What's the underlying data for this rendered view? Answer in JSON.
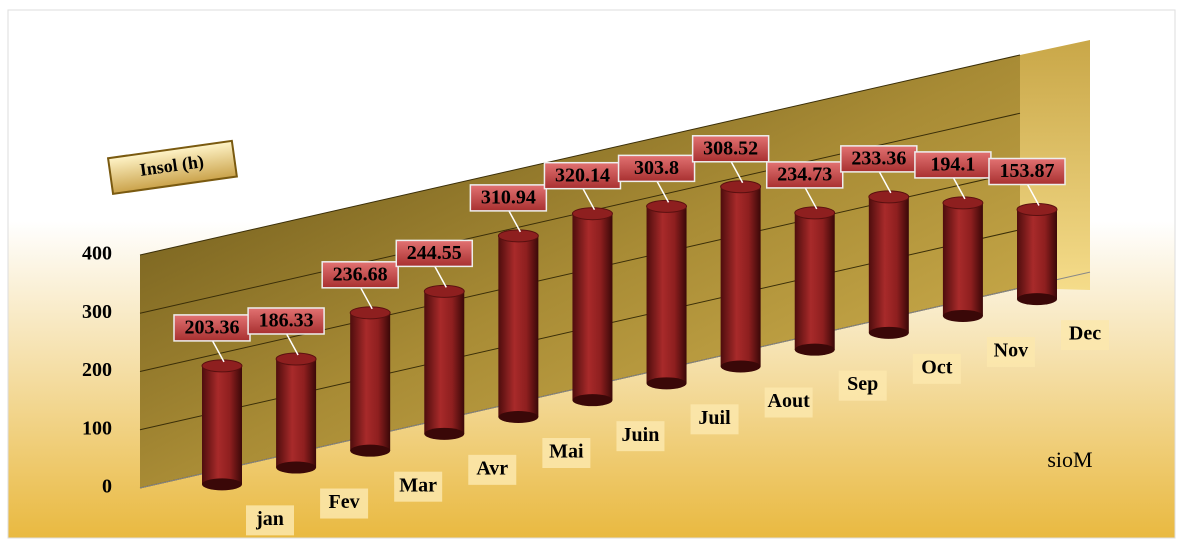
{
  "chart_data": {
    "type": "bar3d",
    "y_axis_label": "Insol (h)",
    "x_axis_label": "sioM",
    "categories": [
      "jan",
      "Fev",
      "Mar",
      "Avr",
      "Mai",
      "Juin",
      "Juil",
      "Aout",
      "Sep",
      "Oct",
      "Nov",
      "Dec"
    ],
    "values": [
      203.36,
      186.33,
      236.68,
      244.55,
      310.94,
      320.14,
      303.8,
      308.52,
      234.73,
      233.36,
      194.1,
      153.87
    ],
    "color": "#8e1f1f",
    "ylim": [
      0,
      400
    ],
    "yticks": [
      0,
      100,
      200,
      300,
      400
    ],
    "grid": true
  }
}
